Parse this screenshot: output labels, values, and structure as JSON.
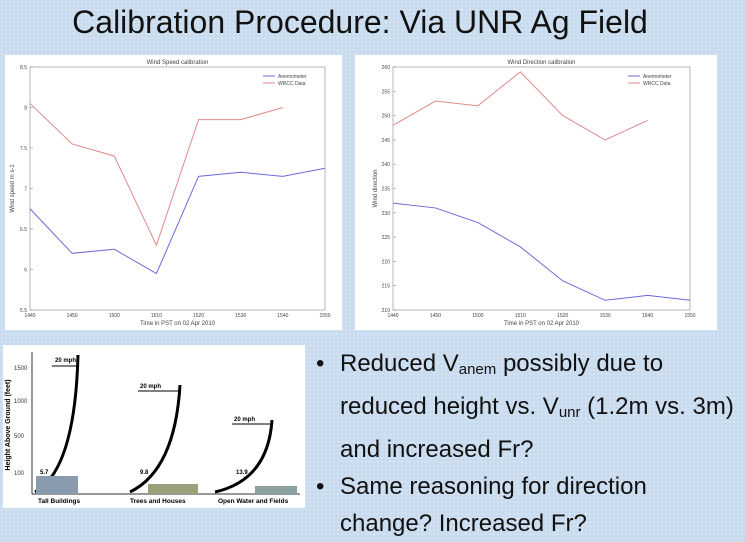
{
  "header": {
    "title": "Calibration Procedure: Via UNR Ag Field"
  },
  "chart_data": [
    {
      "type": "line",
      "title": "Wind Speed calibration",
      "xlabel": "Time in PST on 02 Apr 2010",
      "ylabel": "Wind speed m s-1",
      "categories": [
        "1440",
        "1450",
        "1500",
        "1510",
        "1520",
        "1530",
        "1540",
        "1550"
      ],
      "series": [
        {
          "name": "Anemometer",
          "color": "#6b6bd6",
          "values": [
            6.75,
            6.2,
            6.25,
            5.95,
            7.15,
            7.2,
            7.15,
            7.25
          ]
        },
        {
          "name": "WRCC Data",
          "color": "#e08a8a",
          "values": [
            8.05,
            7.55,
            7.4,
            6.3,
            7.85,
            7.85,
            8.0,
            null
          ]
        }
      ],
      "ylim": [
        5.5,
        8.5
      ],
      "yticks": [
        5.5,
        6,
        6.5,
        7,
        7.5,
        8,
        8.5
      ],
      "legend": "top-right"
    },
    {
      "type": "line",
      "title": "Wind Direction calibration",
      "xlabel": "Time in PST on 02 Apr 2010",
      "ylabel": "Wind direction",
      "categories": [
        "1440",
        "1450",
        "1500",
        "1510",
        "1520",
        "1530",
        "1540",
        "1550"
      ],
      "series": [
        {
          "name": "Anemometer",
          "color": "#6b6bd6",
          "values": [
            232,
            231,
            228,
            223,
            216,
            212,
            213,
            212
          ]
        },
        {
          "name": "WRCC Data",
          "color": "#e08a8a",
          "values": [
            248,
            253,
            252,
            259,
            250,
            245,
            249,
            null
          ]
        }
      ],
      "ylim": [
        210,
        260
      ],
      "yticks": [
        210,
        215,
        220,
        225,
        230,
        235,
        240,
        245,
        250,
        255,
        260
      ],
      "legend": "top-right"
    }
  ],
  "diagram": {
    "ylabel": "Height Above Ground (feet)",
    "yticks": [
      "1500",
      "1000",
      "500",
      "100"
    ],
    "speeds": [
      "20 mph",
      "20 mph",
      "20 mph"
    ],
    "surface_speeds": [
      "5.7",
      "9.8",
      "13.9"
    ],
    "terrains": [
      "Tall Buildings",
      "Trees and Houses",
      "Open Water and Fields"
    ]
  },
  "bullets": [
    [
      "Reduced V",
      "anem",
      " possibly due to reduced height vs. V",
      "unr",
      " (1.2m vs. 3m) and increased Fr?"
    ],
    [
      "Same reasoning for direction change? Increased Fr?"
    ]
  ]
}
